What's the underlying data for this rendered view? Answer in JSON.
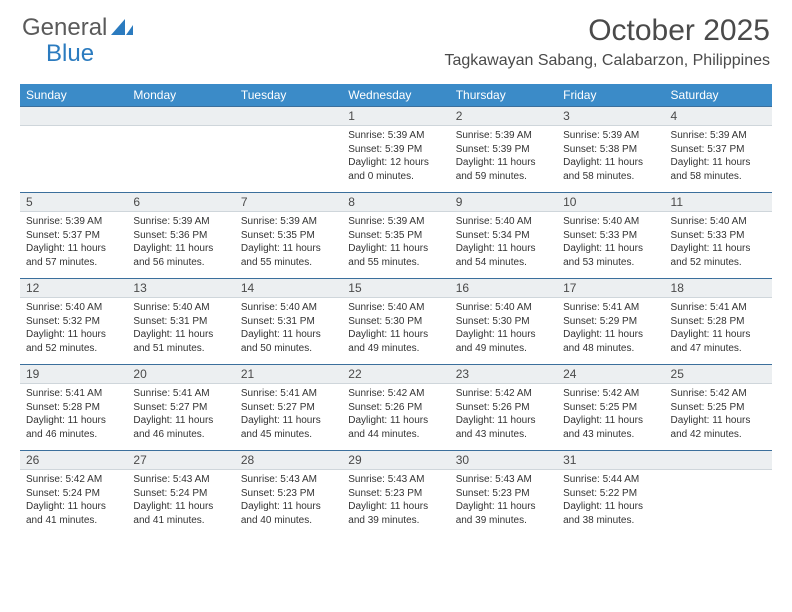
{
  "logo": {
    "text_general": "General",
    "text_blue": "Blue",
    "accent_color": "#2b7bbf"
  },
  "title": {
    "month": "October 2025",
    "location": "Tagkawayan Sabang, Calabarzon, Philippines"
  },
  "colors": {
    "header_bg": "#3b8bc8",
    "header_text": "#ffffff",
    "daynum_bg": "#eceff1",
    "body_text": "#333333",
    "rule": "#3b6f9c"
  },
  "weekdays": [
    "Sunday",
    "Monday",
    "Tuesday",
    "Wednesday",
    "Thursday",
    "Friday",
    "Saturday"
  ],
  "weeks": [
    [
      {
        "n": "",
        "sr": "",
        "ss": "",
        "dl1": "",
        "dl2": ""
      },
      {
        "n": "",
        "sr": "",
        "ss": "",
        "dl1": "",
        "dl2": ""
      },
      {
        "n": "",
        "sr": "",
        "ss": "",
        "dl1": "",
        "dl2": ""
      },
      {
        "n": "1",
        "sr": "Sunrise: 5:39 AM",
        "ss": "Sunset: 5:39 PM",
        "dl1": "Daylight: 12 hours",
        "dl2": "and 0 minutes."
      },
      {
        "n": "2",
        "sr": "Sunrise: 5:39 AM",
        "ss": "Sunset: 5:39 PM",
        "dl1": "Daylight: 11 hours",
        "dl2": "and 59 minutes."
      },
      {
        "n": "3",
        "sr": "Sunrise: 5:39 AM",
        "ss": "Sunset: 5:38 PM",
        "dl1": "Daylight: 11 hours",
        "dl2": "and 58 minutes."
      },
      {
        "n": "4",
        "sr": "Sunrise: 5:39 AM",
        "ss": "Sunset: 5:37 PM",
        "dl1": "Daylight: 11 hours",
        "dl2": "and 58 minutes."
      }
    ],
    [
      {
        "n": "5",
        "sr": "Sunrise: 5:39 AM",
        "ss": "Sunset: 5:37 PM",
        "dl1": "Daylight: 11 hours",
        "dl2": "and 57 minutes."
      },
      {
        "n": "6",
        "sr": "Sunrise: 5:39 AM",
        "ss": "Sunset: 5:36 PM",
        "dl1": "Daylight: 11 hours",
        "dl2": "and 56 minutes."
      },
      {
        "n": "7",
        "sr": "Sunrise: 5:39 AM",
        "ss": "Sunset: 5:35 PM",
        "dl1": "Daylight: 11 hours",
        "dl2": "and 55 minutes."
      },
      {
        "n": "8",
        "sr": "Sunrise: 5:39 AM",
        "ss": "Sunset: 5:35 PM",
        "dl1": "Daylight: 11 hours",
        "dl2": "and 55 minutes."
      },
      {
        "n": "9",
        "sr": "Sunrise: 5:40 AM",
        "ss": "Sunset: 5:34 PM",
        "dl1": "Daylight: 11 hours",
        "dl2": "and 54 minutes."
      },
      {
        "n": "10",
        "sr": "Sunrise: 5:40 AM",
        "ss": "Sunset: 5:33 PM",
        "dl1": "Daylight: 11 hours",
        "dl2": "and 53 minutes."
      },
      {
        "n": "11",
        "sr": "Sunrise: 5:40 AM",
        "ss": "Sunset: 5:33 PM",
        "dl1": "Daylight: 11 hours",
        "dl2": "and 52 minutes."
      }
    ],
    [
      {
        "n": "12",
        "sr": "Sunrise: 5:40 AM",
        "ss": "Sunset: 5:32 PM",
        "dl1": "Daylight: 11 hours",
        "dl2": "and 52 minutes."
      },
      {
        "n": "13",
        "sr": "Sunrise: 5:40 AM",
        "ss": "Sunset: 5:31 PM",
        "dl1": "Daylight: 11 hours",
        "dl2": "and 51 minutes."
      },
      {
        "n": "14",
        "sr": "Sunrise: 5:40 AM",
        "ss": "Sunset: 5:31 PM",
        "dl1": "Daylight: 11 hours",
        "dl2": "and 50 minutes."
      },
      {
        "n": "15",
        "sr": "Sunrise: 5:40 AM",
        "ss": "Sunset: 5:30 PM",
        "dl1": "Daylight: 11 hours",
        "dl2": "and 49 minutes."
      },
      {
        "n": "16",
        "sr": "Sunrise: 5:40 AM",
        "ss": "Sunset: 5:30 PM",
        "dl1": "Daylight: 11 hours",
        "dl2": "and 49 minutes."
      },
      {
        "n": "17",
        "sr": "Sunrise: 5:41 AM",
        "ss": "Sunset: 5:29 PM",
        "dl1": "Daylight: 11 hours",
        "dl2": "and 48 minutes."
      },
      {
        "n": "18",
        "sr": "Sunrise: 5:41 AM",
        "ss": "Sunset: 5:28 PM",
        "dl1": "Daylight: 11 hours",
        "dl2": "and 47 minutes."
      }
    ],
    [
      {
        "n": "19",
        "sr": "Sunrise: 5:41 AM",
        "ss": "Sunset: 5:28 PM",
        "dl1": "Daylight: 11 hours",
        "dl2": "and 46 minutes."
      },
      {
        "n": "20",
        "sr": "Sunrise: 5:41 AM",
        "ss": "Sunset: 5:27 PM",
        "dl1": "Daylight: 11 hours",
        "dl2": "and 46 minutes."
      },
      {
        "n": "21",
        "sr": "Sunrise: 5:41 AM",
        "ss": "Sunset: 5:27 PM",
        "dl1": "Daylight: 11 hours",
        "dl2": "and 45 minutes."
      },
      {
        "n": "22",
        "sr": "Sunrise: 5:42 AM",
        "ss": "Sunset: 5:26 PM",
        "dl1": "Daylight: 11 hours",
        "dl2": "and 44 minutes."
      },
      {
        "n": "23",
        "sr": "Sunrise: 5:42 AM",
        "ss": "Sunset: 5:26 PM",
        "dl1": "Daylight: 11 hours",
        "dl2": "and 43 minutes."
      },
      {
        "n": "24",
        "sr": "Sunrise: 5:42 AM",
        "ss": "Sunset: 5:25 PM",
        "dl1": "Daylight: 11 hours",
        "dl2": "and 43 minutes."
      },
      {
        "n": "25",
        "sr": "Sunrise: 5:42 AM",
        "ss": "Sunset: 5:25 PM",
        "dl1": "Daylight: 11 hours",
        "dl2": "and 42 minutes."
      }
    ],
    [
      {
        "n": "26",
        "sr": "Sunrise: 5:42 AM",
        "ss": "Sunset: 5:24 PM",
        "dl1": "Daylight: 11 hours",
        "dl2": "and 41 minutes."
      },
      {
        "n": "27",
        "sr": "Sunrise: 5:43 AM",
        "ss": "Sunset: 5:24 PM",
        "dl1": "Daylight: 11 hours",
        "dl2": "and 41 minutes."
      },
      {
        "n": "28",
        "sr": "Sunrise: 5:43 AM",
        "ss": "Sunset: 5:23 PM",
        "dl1": "Daylight: 11 hours",
        "dl2": "and 40 minutes."
      },
      {
        "n": "29",
        "sr": "Sunrise: 5:43 AM",
        "ss": "Sunset: 5:23 PM",
        "dl1": "Daylight: 11 hours",
        "dl2": "and 39 minutes."
      },
      {
        "n": "30",
        "sr": "Sunrise: 5:43 AM",
        "ss": "Sunset: 5:23 PM",
        "dl1": "Daylight: 11 hours",
        "dl2": "and 39 minutes."
      },
      {
        "n": "31",
        "sr": "Sunrise: 5:44 AM",
        "ss": "Sunset: 5:22 PM",
        "dl1": "Daylight: 11 hours",
        "dl2": "and 38 minutes."
      },
      {
        "n": "",
        "sr": "",
        "ss": "",
        "dl1": "",
        "dl2": ""
      }
    ]
  ]
}
